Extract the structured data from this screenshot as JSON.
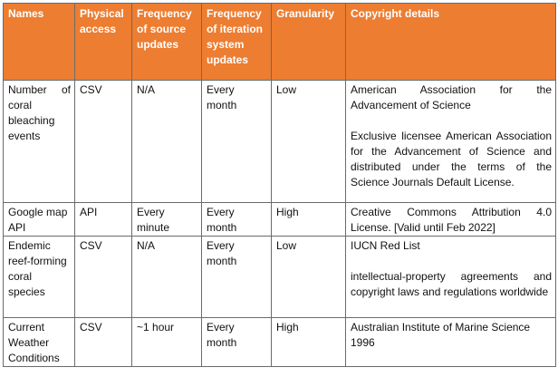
{
  "table": {
    "headers": [
      "Names",
      "Physical access",
      "Frequency of source updates",
      "Frequency of iteration system updates",
      "Granularity",
      "Copyright details"
    ],
    "rows": [
      {
        "name": "Number of coral bleaching events",
        "access": "CSV",
        "source_freq": "N/A",
        "iteration_freq": "Every month",
        "granularity": "Low",
        "copyright": [
          "American Association for the Advancement of Science",
          "Exclusive licensee American Association for the Advancement of Science and distributed under the terms of the Science Journals Default License."
        ]
      },
      {
        "name": "Google map API",
        "access": "API",
        "source_freq": "Every minute",
        "iteration_freq": "Every month",
        "granularity": "High",
        "copyright": [
          "Creative Commons Attribution 4.0 License. [Valid until Feb 2022]"
        ]
      },
      {
        "name": "Endemic reef-forming coral species",
        "access": "CSV",
        "source_freq": "N/A",
        "iteration_freq": "Every month",
        "granularity": "Low",
        "copyright": [
          "IUCN Red List",
          "intellectual-property agreements and copyright laws and regulations worldwide"
        ]
      },
      {
        "name": "Current Weather Conditions",
        "access": "CSV",
        "source_freq": "~1 hour",
        "iteration_freq": "Every month",
        "granularity": "High",
        "copyright": [
          "Australian Institute of Marine Science 1996"
        ]
      }
    ]
  }
}
